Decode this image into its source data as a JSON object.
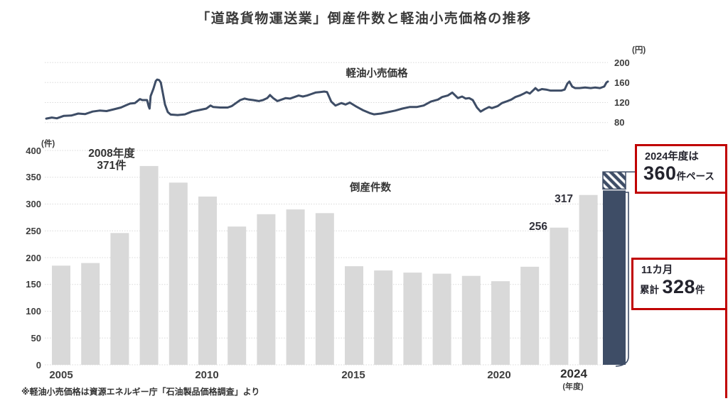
{
  "title": "「道路貨物運送業」倒産件数と軽油小売価格の推移",
  "footnote": "※軽油小売価格は資源エネルギー庁「石油製品価格調査」より",
  "colors": {
    "navy": "#3E4D66",
    "gray_bar": "#D9D9D9",
    "grid": "#D9D9D9",
    "red": "#C00000",
    "text": "#333333"
  },
  "price_chart": {
    "series_label": "軽油小売価格",
    "unit_label": "(円)",
    "y_ticks": [
      "200",
      "160",
      "120",
      "80"
    ]
  },
  "bankruptcy_chart": {
    "series_label": "倒産件数",
    "unit_label": "(件)",
    "y_ticks": [
      "400",
      "350",
      "300",
      "250",
      "200",
      "150",
      "100",
      "50",
      "0"
    ],
    "x_ticks": [
      "2005",
      "2010",
      "2015",
      "2020",
      "2024"
    ],
    "x_unit_label": "(年度)"
  },
  "annotations": {
    "peak_line1": "2008年度",
    "peak_line2": "371件",
    "value_2022": "256",
    "value_2023": "317",
    "pace_box": {
      "line1": "2024年度は",
      "value": "360",
      "suffix": "件ペース"
    },
    "cumulative_box": {
      "line1": "11カ月",
      "prefix": "累計",
      "value": "328",
      "suffix": "件"
    }
  },
  "chart_data": [
    {
      "type": "bar",
      "title": "倒産件数",
      "ylabel": "件",
      "ylim": [
        0,
        400
      ],
      "grid": true,
      "categories": [
        2005,
        2006,
        2007,
        2008,
        2009,
        2010,
        2011,
        2012,
        2013,
        2014,
        2015,
        2016,
        2017,
        2018,
        2019,
        2020,
        2021,
        2022,
        2023,
        2024
      ],
      "values": [
        185,
        190,
        246,
        371,
        340,
        314,
        258,
        281,
        290,
        283,
        184,
        176,
        172,
        170,
        166,
        156,
        183,
        256,
        317,
        328
      ],
      "note_2024": {
        "months_elapsed": 11,
        "cumulative": 328,
        "annual_pace": 360
      }
    },
    {
      "type": "line",
      "title": "軽油小売価格",
      "ylabel": "円",
      "ylim": [
        80,
        200
      ],
      "x_range": [
        2005,
        2025
      ],
      "points": [
        [
          2005.0,
          88
        ],
        [
          2005.2,
          90
        ],
        [
          2005.38,
          88.5
        ],
        [
          2005.63,
          93.5
        ],
        [
          2005.89,
          94
        ],
        [
          2006.14,
          98
        ],
        [
          2006.39,
          97
        ],
        [
          2006.65,
          102
        ],
        [
          2006.9,
          104
        ],
        [
          2007.15,
          103
        ],
        [
          2007.41,
          106.5
        ],
        [
          2007.66,
          110
        ],
        [
          2007.86,
          115
        ],
        [
          2007.99,
          118
        ],
        [
          2008.16,
          119
        ],
        [
          2008.34,
          127
        ],
        [
          2008.42,
          125
        ],
        [
          2008.59,
          125
        ],
        [
          2008.65,
          112
        ],
        [
          2008.68,
          108
        ],
        [
          2008.72,
          133
        ],
        [
          2008.82,
          148
        ],
        [
          2008.9,
          163
        ],
        [
          2008.95,
          166
        ],
        [
          2009.02,
          165
        ],
        [
          2009.08,
          160
        ],
        [
          2009.15,
          140
        ],
        [
          2009.23,
          116
        ],
        [
          2009.33,
          101
        ],
        [
          2009.43,
          96
        ],
        [
          2009.68,
          95
        ],
        [
          2009.94,
          96.5
        ],
        [
          2010.19,
          102
        ],
        [
          2010.44,
          105
        ],
        [
          2010.7,
          108
        ],
        [
          2010.85,
          114
        ],
        [
          2010.95,
          111
        ],
        [
          2011.2,
          110
        ],
        [
          2011.46,
          110
        ],
        [
          2011.61,
          113
        ],
        [
          2011.76,
          119
        ],
        [
          2011.91,
          125
        ],
        [
          2012.06,
          128
        ],
        [
          2012.22,
          126
        ],
        [
          2012.37,
          125
        ],
        [
          2012.57,
          123
        ],
        [
          2012.72,
          125
        ],
        [
          2012.87,
          129
        ],
        [
          2012.97,
          135
        ],
        [
          2013.08,
          129
        ],
        [
          2013.23,
          123
        ],
        [
          2013.38,
          126
        ],
        [
          2013.53,
          129
        ],
        [
          2013.68,
          128
        ],
        [
          2013.84,
          131
        ],
        [
          2013.99,
          134
        ],
        [
          2014.14,
          132
        ],
        [
          2014.29,
          134
        ],
        [
          2014.44,
          137
        ],
        [
          2014.59,
          140
        ],
        [
          2014.75,
          141
        ],
        [
          2014.9,
          142
        ],
        [
          2015.0,
          141
        ],
        [
          2015.15,
          122
        ],
        [
          2015.3,
          114
        ],
        [
          2015.51,
          119
        ],
        [
          2015.66,
          116
        ],
        [
          2015.81,
          120
        ],
        [
          2016.01,
          113
        ],
        [
          2016.27,
          105
        ],
        [
          2016.52,
          99
        ],
        [
          2016.67,
          96.5
        ],
        [
          2016.92,
          98
        ],
        [
          2017.18,
          101
        ],
        [
          2017.43,
          104
        ],
        [
          2017.68,
          108
        ],
        [
          2017.94,
          111
        ],
        [
          2018.19,
          111
        ],
        [
          2018.44,
          114
        ],
        [
          2018.7,
          122
        ],
        [
          2018.95,
          126
        ],
        [
          2019.1,
          131
        ],
        [
          2019.3,
          134
        ],
        [
          2019.46,
          140
        ],
        [
          2019.66,
          129
        ],
        [
          2019.81,
          132
        ],
        [
          2019.94,
          128
        ],
        [
          2020.06,
          129
        ],
        [
          2020.19,
          125
        ],
        [
          2020.34,
          110
        ],
        [
          2020.47,
          102
        ],
        [
          2020.62,
          107
        ],
        [
          2020.77,
          111
        ],
        [
          2020.87,
          109
        ],
        [
          2021.08,
          113
        ],
        [
          2021.23,
          119
        ],
        [
          2021.38,
          122
        ],
        [
          2021.56,
          126
        ],
        [
          2021.71,
          131
        ],
        [
          2021.86,
          134
        ],
        [
          2022.01,
          138
        ],
        [
          2022.11,
          141
        ],
        [
          2022.22,
          138
        ],
        [
          2022.37,
          146
        ],
        [
          2022.42,
          149
        ],
        [
          2022.52,
          144
        ],
        [
          2022.65,
          147
        ],
        [
          2022.8,
          146
        ],
        [
          2022.95,
          144
        ],
        [
          2023.15,
          144
        ],
        [
          2023.35,
          144
        ],
        [
          2023.46,
          146
        ],
        [
          2023.56,
          158
        ],
        [
          2023.63,
          162
        ],
        [
          2023.73,
          152
        ],
        [
          2023.83,
          149
        ],
        [
          2023.99,
          149
        ],
        [
          2024.19,
          150
        ],
        [
          2024.39,
          149
        ],
        [
          2024.54,
          150
        ],
        [
          2024.72,
          149
        ],
        [
          2024.87,
          152
        ],
        [
          2024.95,
          160
        ],
        [
          2025.0,
          162
        ]
      ]
    }
  ]
}
